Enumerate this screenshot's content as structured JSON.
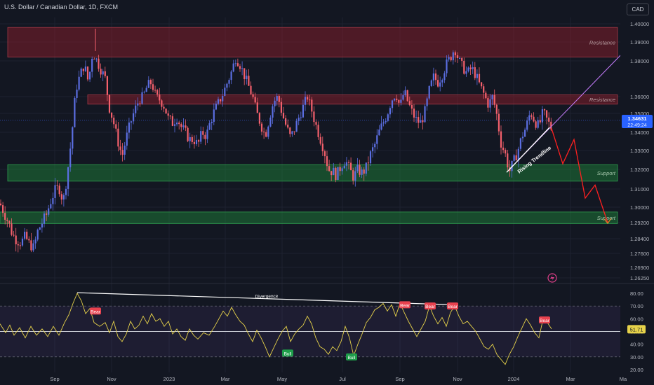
{
  "header": {
    "title": "U.S. Dollar / Canadian Dollar, 1D, FXCM",
    "currency": "CAD"
  },
  "colors": {
    "background": "#131722",
    "bull_candle": "#5b6ee1",
    "bear_candle": "#f4606c",
    "resistance_zone": "#8b1d2a",
    "support_zone": "#1f7a3a",
    "rsi_line": "#e6d24a",
    "projection": "#ff2020",
    "trendline": "#c77dff",
    "price_label": "#2962ff"
  },
  "chart_data": {
    "type": "candlestick",
    "symbol": "U.S. Dollar / Canadian Dollar",
    "interval": "1D",
    "source": "FXCM",
    "price_axis": {
      "ticks": [
        "1.40000",
        "1.39000",
        "1.38000",
        "1.36000",
        "1.35000",
        "1.34000",
        "1.33000",
        "1.32000",
        "1.31000",
        "1.30000",
        "1.29200",
        "1.28400",
        "1.27600",
        "1.26900",
        "1.26250"
      ],
      "current_price": "1.34631",
      "countdown": "22:49:24"
    },
    "time_axis": {
      "labels": [
        "Sep",
        "Nov",
        "2023",
        "Mar",
        "May",
        "Jul",
        "Sep",
        "Nov",
        "2024",
        "Mar",
        "Ma"
      ]
    },
    "price_anchors": [
      [
        0,
        1.302
      ],
      [
        6,
        1.297
      ],
      [
        12,
        1.292
      ],
      [
        18,
        1.286
      ],
      [
        24,
        1.283
      ],
      [
        30,
        1.282
      ],
      [
        36,
        1.285
      ],
      [
        42,
        1.281
      ],
      [
        48,
        1.279
      ],
      [
        54,
        1.288
      ],
      [
        60,
        1.292
      ],
      [
        66,
        1.296
      ],
      [
        72,
        1.303
      ],
      [
        78,
        1.309
      ],
      [
        84,
        1.311
      ],
      [
        90,
        1.303
      ],
      [
        96,
        1.318
      ],
      [
        102,
        1.337
      ],
      [
        108,
        1.364
      ],
      [
        114,
        1.372
      ],
      [
        120,
        1.378
      ],
      [
        126,
        1.368
      ],
      [
        132,
        1.385
      ],
      [
        138,
        1.38
      ],
      [
        144,
        1.375
      ],
      [
        150,
        1.37
      ],
      [
        156,
        1.353
      ],
      [
        162,
        1.345
      ],
      [
        168,
        1.335
      ],
      [
        174,
        1.327
      ],
      [
        180,
        1.337
      ],
      [
        186,
        1.345
      ],
      [
        192,
        1.352
      ],
      [
        198,
        1.358
      ],
      [
        204,
        1.36
      ],
      [
        210,
        1.366
      ],
      [
        216,
        1.368
      ],
      [
        222,
        1.36
      ],
      [
        228,
        1.358
      ],
      [
        234,
        1.354
      ],
      [
        240,
        1.347
      ],
      [
        246,
        1.345
      ],
      [
        252,
        1.348
      ],
      [
        258,
        1.343
      ],
      [
        264,
        1.34
      ],
      [
        270,
        1.336
      ],
      [
        276,
        1.336
      ],
      [
        282,
        1.333
      ],
      [
        288,
        1.34
      ],
      [
        294,
        1.338
      ],
      [
        300,
        1.346
      ],
      [
        306,
        1.352
      ],
      [
        312,
        1.357
      ],
      [
        318,
        1.362
      ],
      [
        324,
        1.368
      ],
      [
        330,
        1.374
      ],
      [
        336,
        1.382
      ],
      [
        342,
        1.378
      ],
      [
        348,
        1.372
      ],
      [
        354,
        1.366
      ],
      [
        360,
        1.36
      ],
      [
        366,
        1.35
      ],
      [
        372,
        1.344
      ],
      [
        378,
        1.338
      ],
      [
        384,
        1.348
      ],
      [
        390,
        1.357
      ],
      [
        396,
        1.36
      ],
      [
        402,
        1.35
      ],
      [
        408,
        1.343
      ],
      [
        414,
        1.337
      ],
      [
        420,
        1.342
      ],
      [
        426,
        1.348
      ],
      [
        432,
        1.354
      ],
      [
        438,
        1.36
      ],
      [
        444,
        1.352
      ],
      [
        450,
        1.344
      ],
      [
        456,
        1.337
      ],
      [
        462,
        1.33
      ],
      [
        468,
        1.32
      ],
      [
        474,
        1.319
      ],
      [
        480,
        1.317
      ],
      [
        486,
        1.322
      ],
      [
        492,
        1.325
      ],
      [
        498,
        1.32
      ],
      [
        504,
        1.316
      ],
      [
        510,
        1.32
      ],
      [
        516,
        1.318
      ],
      [
        522,
        1.321
      ],
      [
        528,
        1.328
      ],
      [
        534,
        1.333
      ],
      [
        540,
        1.34
      ],
      [
        546,
        1.345
      ],
      [
        552,
        1.35
      ],
      [
        558,
        1.358
      ],
      [
        564,
        1.362
      ],
      [
        570,
        1.354
      ],
      [
        576,
        1.363
      ],
      [
        582,
        1.356
      ],
      [
        588,
        1.35
      ],
      [
        594,
        1.346
      ],
      [
        600,
        1.345
      ],
      [
        606,
        1.352
      ],
      [
        612,
        1.364
      ],
      [
        618,
        1.371
      ],
      [
        624,
        1.368
      ],
      [
        630,
        1.372
      ],
      [
        636,
        1.378
      ],
      [
        642,
        1.382
      ],
      [
        648,
        1.387
      ],
      [
        654,
        1.38
      ],
      [
        660,
        1.376
      ],
      [
        666,
        1.373
      ],
      [
        672,
        1.376
      ],
      [
        678,
        1.372
      ],
      [
        684,
        1.366
      ],
      [
        690,
        1.361
      ],
      [
        696,
        1.355
      ],
      [
        702,
        1.36
      ],
      [
        708,
        1.349
      ],
      [
        714,
        1.334
      ],
      [
        720,
        1.328
      ],
      [
        726,
        1.319
      ],
      [
        732,
        1.324
      ],
      [
        738,
        1.33
      ],
      [
        744,
        1.338
      ],
      [
        750,
        1.343
      ],
      [
        756,
        1.351
      ],
      [
        762,
        1.346
      ],
      [
        768,
        1.343
      ],
      [
        774,
        1.351
      ],
      [
        780,
        1.346
      ],
      [
        786,
        1.342
      ]
    ],
    "zones": [
      {
        "type": "resistance",
        "label": "Resistance",
        "from": 1.382,
        "to": 1.398
      },
      {
        "type": "resistance",
        "label": "Resistance",
        "from": 1.3555,
        "to": 1.361
      },
      {
        "type": "support",
        "label": "Support",
        "from": 1.314,
        "to": 1.3225
      },
      {
        "type": "support",
        "label": "Support",
        "from": 1.2915,
        "to": 1.2975
      }
    ],
    "annotations": {
      "trendline_label": "Rising Trendline",
      "projection_path": [
        [
          786,
          1.342
        ],
        [
          802,
          1.323
        ],
        [
          818,
          1.336
        ],
        [
          834,
          1.305
        ],
        [
          848,
          1.312
        ],
        [
          866,
          1.292
        ]
      ]
    },
    "rsi": {
      "axis_ticks": [
        "80.00",
        "70.00",
        "60.00",
        "50.00",
        "40.00",
        "30.00",
        "20.00"
      ],
      "current_value": "51.71",
      "upper_band": 70,
      "lower_band": 30,
      "mid_line": 50,
      "series": [
        [
          0,
          56
        ],
        [
          8,
          49
        ],
        [
          14,
          55
        ],
        [
          20,
          47
        ],
        [
          28,
          53
        ],
        [
          36,
          45
        ],
        [
          44,
          54
        ],
        [
          52,
          47
        ],
        [
          60,
          52
        ],
        [
          68,
          46
        ],
        [
          76,
          54
        ],
        [
          84,
          47
        ],
        [
          92,
          57
        ],
        [
          98,
          63
        ],
        [
          104,
          72
        ],
        [
          110,
          80
        ],
        [
          116,
          74
        ],
        [
          122,
          64
        ],
        [
          128,
          68
        ],
        [
          134,
          57
        ],
        [
          142,
          54
        ],
        [
          150,
          57
        ],
        [
          156,
          49
        ],
        [
          162,
          58
        ],
        [
          168,
          46
        ],
        [
          174,
          42
        ],
        [
          180,
          48
        ],
        [
          186,
          58
        ],
        [
          192,
          52
        ],
        [
          198,
          55
        ],
        [
          204,
          62
        ],
        [
          210,
          56
        ],
        [
          216,
          64
        ],
        [
          222,
          58
        ],
        [
          228,
          60
        ],
        [
          234,
          54
        ],
        [
          240,
          58
        ],
        [
          246,
          48
        ],
        [
          252,
          52
        ],
        [
          258,
          46
        ],
        [
          264,
          43
        ],
        [
          270,
          52
        ],
        [
          276,
          47
        ],
        [
          282,
          44
        ],
        [
          290,
          49
        ],
        [
          298,
          47
        ],
        [
          306,
          54
        ],
        [
          312,
          60
        ],
        [
          318,
          66
        ],
        [
          324,
          62
        ],
        [
          330,
          69
        ],
        [
          336,
          63
        ],
        [
          342,
          58
        ],
        [
          348,
          55
        ],
        [
          354,
          48
        ],
        [
          360,
          42
        ],
        [
          366,
          51
        ],
        [
          372,
          45
        ],
        [
          378,
          38
        ],
        [
          384,
          30
        ],
        [
          390,
          37
        ],
        [
          396,
          44
        ],
        [
          402,
          50
        ],
        [
          408,
          54
        ],
        [
          414,
          42
        ],
        [
          420,
          48
        ],
        [
          426,
          52
        ],
        [
          432,
          55
        ],
        [
          438,
          62
        ],
        [
          444,
          56
        ],
        [
          450,
          45
        ],
        [
          456,
          38
        ],
        [
          462,
          36
        ],
        [
          468,
          32
        ],
        [
          474,
          38
        ],
        [
          480,
          35
        ],
        [
          486,
          42
        ],
        [
          492,
          54
        ],
        [
          498,
          45
        ],
        [
          504,
          31
        ],
        [
          510,
          40
        ],
        [
          516,
          48
        ],
        [
          522,
          57
        ],
        [
          528,
          61
        ],
        [
          534,
          67
        ],
        [
          540,
          69
        ],
        [
          546,
          72
        ],
        [
          552,
          66
        ],
        [
          558,
          71
        ],
        [
          564,
          62
        ],
        [
          570,
          72
        ],
        [
          576,
          65
        ],
        [
          582,
          58
        ],
        [
          588,
          52
        ],
        [
          594,
          46
        ],
        [
          600,
          52
        ],
        [
          606,
          58
        ],
        [
          612,
          70
        ],
        [
          618,
          62
        ],
        [
          624,
          56
        ],
        [
          630,
          61
        ],
        [
          636,
          54
        ],
        [
          642,
          65
        ],
        [
          648,
          70
        ],
        [
          654,
          62
        ],
        [
          660,
          56
        ],
        [
          666,
          58
        ],
        [
          672,
          54
        ],
        [
          678,
          50
        ],
        [
          684,
          44
        ],
        [
          690,
          38
        ],
        [
          696,
          36
        ],
        [
          702,
          40
        ],
        [
          708,
          32
        ],
        [
          714,
          28
        ],
        [
          720,
          24
        ],
        [
          726,
          32
        ],
        [
          732,
          38
        ],
        [
          738,
          46
        ],
        [
          744,
          53
        ],
        [
          750,
          60
        ],
        [
          756,
          55
        ],
        [
          762,
          49
        ],
        [
          768,
          45
        ],
        [
          774,
          60
        ],
        [
          780,
          57
        ],
        [
          786,
          52
        ]
      ],
      "divergence": {
        "label": "Divergence",
        "from": [
          110,
          80.5
        ],
        "to": [
          648,
          71
        ]
      },
      "signals": [
        {
          "label": "Bear",
          "x": 136,
          "y": 66
        },
        {
          "label": "Bull",
          "x": 410,
          "y": 33
        },
        {
          "label": "Bear",
          "x": 577,
          "y": 71
        },
        {
          "label": "Bear",
          "x": 613,
          "y": 70
        },
        {
          "label": "Bear",
          "x": 645,
          "y": 70
        },
        {
          "label": "Bull",
          "x": 501,
          "y": 30
        },
        {
          "label": "Bear",
          "x": 776,
          "y": 59
        }
      ]
    }
  }
}
